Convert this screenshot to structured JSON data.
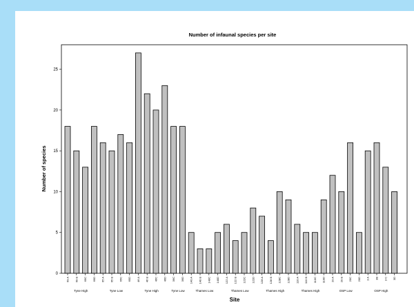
{
  "chart_data": {
    "type": "bar",
    "title": "Number of infaunal species per site",
    "xlabel": "Site",
    "ylabel": "Number of species",
    "ylim": [
      0,
      28
    ],
    "yticks": [
      0,
      5,
      10,
      15,
      20,
      25
    ],
    "grid": false,
    "bar_color": "#c0c0c0",
    "categories": [
      "69 A",
      "69 B",
      "69C",
      "69D",
      "65 A",
      "65 B",
      "65C",
      "65D",
      "46 A",
      "46 B",
      "46C",
      "46D",
      "39C",
      "39D",
      "140 A",
      "140 B",
      "140C",
      "140D",
      "122 A",
      "122 B",
      "122C",
      "122D",
      "128 A",
      "128 B",
      "128C",
      "128D",
      "110 A",
      "110 B",
      "110C",
      "110D",
      "20 A",
      "20 B",
      "20C",
      "20D",
      "3 A",
      "3B",
      "3 C",
      "3D"
    ],
    "values": [
      18,
      15,
      13,
      18,
      16,
      15,
      17,
      16,
      27,
      22,
      20,
      23,
      18,
      18,
      5,
      3,
      3,
      5,
      6,
      4,
      5,
      8,
      7,
      4,
      10,
      9,
      6,
      5,
      5,
      9,
      12,
      10,
      16,
      5,
      15,
      16,
      13,
      10
    ],
    "groups": [
      {
        "label": "Tyne High",
        "start": 0,
        "end": 3
      },
      {
        "label": "Tyne Low",
        "start": 4,
        "end": 7
      },
      {
        "label": "Tyne High",
        "start": 8,
        "end": 11
      },
      {
        "label": "Tyne Low",
        "start": 12,
        "end": 13
      },
      {
        "label": "Thames Low",
        "start": 14,
        "end": 17
      },
      {
        "label": "Thames Low",
        "start": 18,
        "end": 21
      },
      {
        "label": "Thames High",
        "start": 22,
        "end": 25
      },
      {
        "label": "Thames High",
        "start": 26,
        "end": 29
      },
      {
        "label": "OSP Low",
        "start": 30,
        "end": 33
      },
      {
        "label": "OSP High",
        "start": 34,
        "end": 37
      }
    ]
  }
}
